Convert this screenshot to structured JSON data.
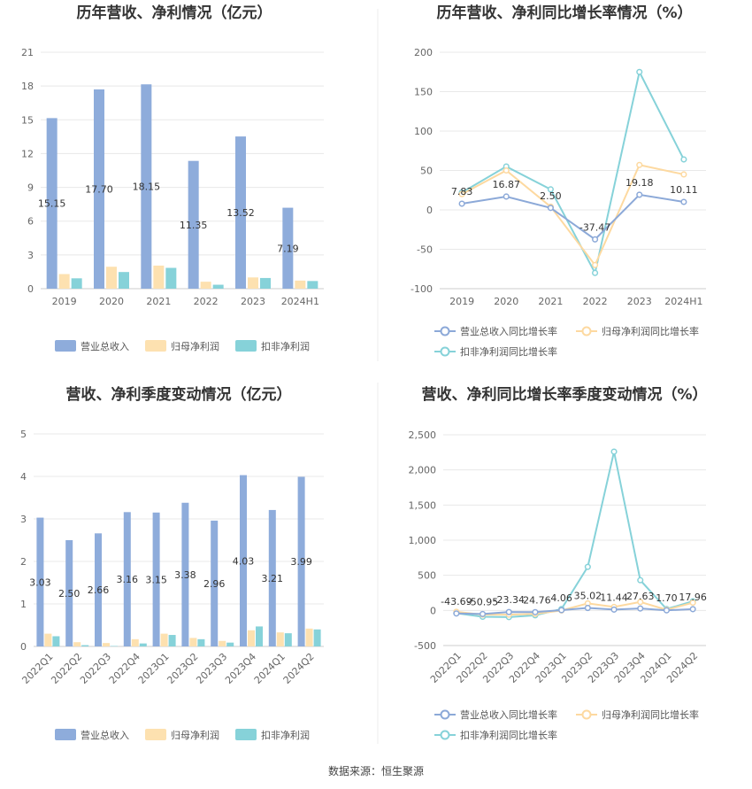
{
  "source": "数据来源：恒生聚源",
  "chart_data": [
    {
      "type": "bar",
      "title": "历年营收、净利情况（亿元）",
      "categories": [
        "2019",
        "2020",
        "2021",
        "2022",
        "2023",
        "2024H1"
      ],
      "y_ticks": [
        "0",
        "3",
        "6",
        "9",
        "12",
        "15",
        "18",
        "21"
      ],
      "ylim": [
        0,
        21
      ],
      "series": [
        {
          "name": "营业总收入",
          "color": "#8eacdb",
          "values": [
            15.15,
            17.7,
            18.15,
            11.35,
            13.52,
            7.19
          ],
          "labels": [
            "15.15",
            "17.70",
            "18.15",
            "11.35",
            "13.52",
            "7.19"
          ]
        },
        {
          "name": "归母净利润",
          "color": "#fde1b0",
          "values": [
            1.3,
            1.95,
            2.05,
            0.62,
            1.0,
            0.72
          ]
        },
        {
          "name": "扣非净利润",
          "color": "#86d2d9",
          "values": [
            0.92,
            1.48,
            1.85,
            0.35,
            0.95,
            0.68
          ]
        }
      ],
      "legend_position": "bottom",
      "grid": true
    },
    {
      "type": "line",
      "title": "历年营收、净利同比增长率情况（%）",
      "categories": [
        "2019",
        "2020",
        "2021",
        "2022",
        "2023",
        "2024H1"
      ],
      "y_ticks": [
        "-100",
        "-50",
        "0",
        "50",
        "100",
        "150",
        "200"
      ],
      "ylim": [
        -100,
        200
      ],
      "series": [
        {
          "name": "营业总收入同比增长率",
          "color": "#8ca9d8",
          "values": [
            7.83,
            16.87,
            2.5,
            -37.47,
            19.18,
            10.11
          ],
          "labels": [
            "7.83",
            "16.87",
            "2.50",
            "-37.47",
            "19.18",
            "10.11"
          ]
        },
        {
          "name": "归母净利润同比增长率",
          "color": "#fdd9a0",
          "values": [
            20,
            50,
            4,
            -70,
            57,
            45
          ]
        },
        {
          "name": "扣非净利润同比增长率",
          "color": "#86d2d9",
          "values": [
            22,
            55,
            26,
            -80,
            175,
            64
          ]
        }
      ],
      "legend_position": "bottom",
      "grid": true
    },
    {
      "type": "bar",
      "title": "营收、净利季度变动情况（亿元）",
      "categories": [
        "2022Q1",
        "2022Q2",
        "2022Q3",
        "2022Q4",
        "2023Q1",
        "2023Q2",
        "2023Q3",
        "2023Q4",
        "2024Q1",
        "2024Q2"
      ],
      "y_ticks": [
        "0",
        "1",
        "2",
        "3",
        "4",
        "5"
      ],
      "ylim": [
        0,
        5
      ],
      "series": [
        {
          "name": "营业总收入",
          "color": "#8eacdb",
          "values": [
            3.03,
            2.5,
            2.66,
            3.16,
            3.15,
            3.38,
            2.96,
            4.03,
            3.21,
            3.99
          ],
          "labels": [
            "3.03",
            "2.50",
            "2.66",
            "3.16",
            "3.15",
            "3.38",
            "2.96",
            "4.03",
            "3.21",
            "3.99"
          ]
        },
        {
          "name": "归母净利润",
          "color": "#fde1b0",
          "values": [
            0.3,
            0.1,
            0.08,
            0.17,
            0.3,
            0.2,
            0.13,
            0.38,
            0.33,
            0.42
          ]
        },
        {
          "name": "扣非净利润",
          "color": "#86d2d9",
          "values": [
            0.24,
            0.03,
            0.01,
            0.07,
            0.27,
            0.17,
            0.09,
            0.47,
            0.31,
            0.4
          ]
        }
      ],
      "legend_position": "bottom",
      "grid": true
    },
    {
      "type": "line",
      "title": "营收、净利同比增长率季度变动情况（%）",
      "categories": [
        "2022Q1",
        "2022Q2",
        "2022Q3",
        "2022Q4",
        "2023Q1",
        "2023Q2",
        "2023Q3",
        "2023Q4",
        "2024Q1",
        "2024Q2"
      ],
      "y_ticks": [
        "-500",
        "0",
        "500",
        "1,000",
        "1,500",
        "2,000",
        "2,500"
      ],
      "ylim": [
        -500,
        2500
      ],
      "series": [
        {
          "name": "营业总收入同比增长率",
          "color": "#8ca9d8",
          "values": [
            -43.69,
            -50.95,
            -23.34,
            -24.76,
            4.06,
            35.02,
            11.44,
            27.63,
            1.7,
            17.96
          ],
          "labels": [
            "-43.69",
            "-50.95",
            "-23.34",
            "-24.76",
            "4.06",
            "35.02",
            "11.44",
            "27.63",
            "1.70",
            "17.96"
          ]
        },
        {
          "name": "归母净利润同比增长率",
          "color": "#fdd9a0",
          "values": [
            -20,
            -60,
            -60,
            -50,
            0,
            100,
            50,
            120,
            10,
            110
          ]
        },
        {
          "name": "扣非净利润同比增长率",
          "color": "#86d2d9",
          "values": [
            -40,
            -90,
            -95,
            -70,
            20,
            620,
            2260,
            430,
            20,
            130
          ]
        }
      ],
      "legend_position": "bottom",
      "grid": true
    }
  ]
}
